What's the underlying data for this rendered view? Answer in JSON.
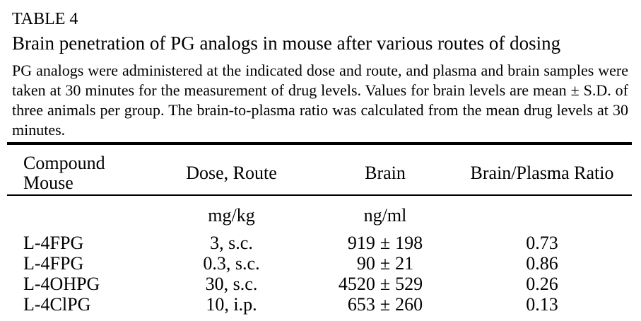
{
  "heading": {
    "table_label": "TABLE 4",
    "title": "Brain penetration of PG analogs in mouse after various routes of dosing"
  },
  "caption": "PG analogs were administered at the indicated dose and route, and plasma and brain samples were taken at 30 minutes for the measurement of drug levels. Values for brain levels are mean ± S.D. of three animals per group. The brain-to-plasma ratio was calculated from the mean drug levels at 30 minutes.",
  "colors": {
    "background": "#ffffff",
    "text": "#000000",
    "rule": "#000000"
  },
  "table": {
    "columns": [
      "Compound Mouse",
      "Dose, Route",
      "Brain",
      "Brain/Plasma Ratio"
    ],
    "units": {
      "dose": "mg/kg",
      "brain": "ng/ml"
    },
    "plus_minus": "±",
    "rows": [
      {
        "compound": "L-4FPG",
        "dose": "3, s.c.",
        "brain_mean": "919",
        "brain_sd": "198",
        "ratio": "0.73"
      },
      {
        "compound": "L-4FPG",
        "dose": "0.3, s.c.",
        "brain_mean": "90",
        "brain_sd": "21",
        "ratio": "0.86"
      },
      {
        "compound": "L-4OHPG",
        "dose": "30, s.c.",
        "brain_mean": "4520",
        "brain_sd": "529",
        "ratio": "0.26"
      },
      {
        "compound": "L-4ClPG",
        "dose": "10, i.p.",
        "brain_mean": "653",
        "brain_sd": "260",
        "ratio": "0.13"
      }
    ]
  }
}
